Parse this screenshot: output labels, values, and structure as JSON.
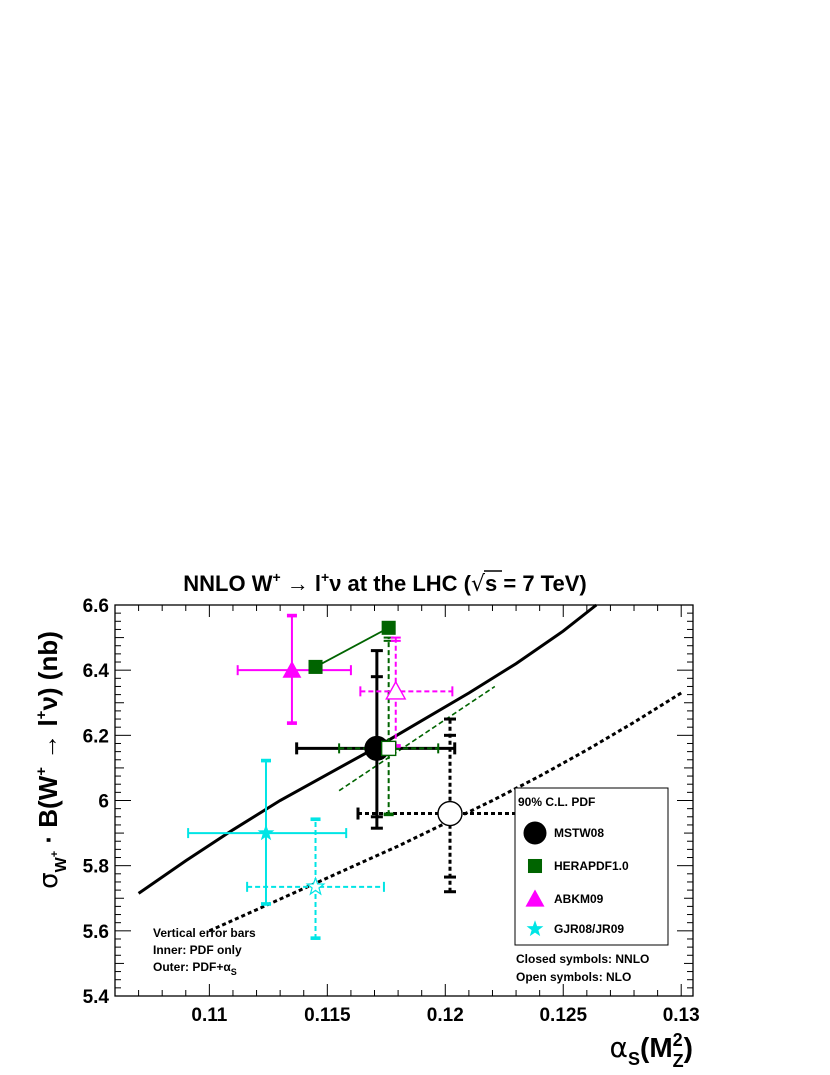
{
  "chart_data": {
    "type": "scatter",
    "title": {
      "prefix": "NNLO W",
      "sup1": "+",
      "arrow": " → l",
      "sup2": "+",
      "suffix": "ν at the LHC (",
      "sqrt_part": "s = 7 TeV)"
    },
    "xlabel": {
      "main": "α",
      "sub1": "S",
      "mid": "(M",
      "sup": "2",
      "sub2": "Z",
      "end": ")"
    },
    "ylabel": {
      "sigma": "σ",
      "sub": "W",
      "subsup": "+",
      "main": " · B(W",
      "sup1": "+",
      "arrow": " → l",
      "sup2": "+",
      "tail": "ν)  (nb)"
    },
    "xlim": [
      0.106,
      0.1305
    ],
    "ylim": [
      5.4,
      6.6
    ],
    "x_ticks": [
      {
        "v": 0.11,
        "label": "0.11"
      },
      {
        "v": 0.115,
        "label": "0.115"
      },
      {
        "v": 0.12,
        "label": "0.12"
      },
      {
        "v": 0.125,
        "label": "0.125"
      },
      {
        "v": 0.13,
        "label": "0.13"
      }
    ],
    "y_ticks": [
      {
        "v": 5.4,
        "label": "5.4"
      },
      {
        "v": 5.6,
        "label": "5.6"
      },
      {
        "v": 5.8,
        "label": "5.8"
      },
      {
        "v": 6.0,
        "label": "6"
      },
      {
        "v": 6.2,
        "label": "6.2"
      },
      {
        "v": 6.4,
        "label": "6.4"
      },
      {
        "v": 6.6,
        "label": "6.6"
      }
    ],
    "colors": {
      "MSTW08": "#000000",
      "HERAPDF1.0": "#006400",
      "ABKM09": "#ff00ff",
      "GJR08/JR09": "#00e5e5"
    },
    "curves": [
      {
        "name": "MSTW08 NNLO alpha_S dependence",
        "style": "solid",
        "color": "#000000",
        "x": [
          0.107,
          0.109,
          0.111,
          0.113,
          0.115,
          0.117,
          0.119,
          0.121,
          0.123,
          0.125,
          0.1264
        ],
        "y": [
          5.715,
          5.815,
          5.91,
          6.0,
          6.08,
          6.16,
          6.245,
          6.33,
          6.42,
          6.52,
          6.6
        ]
      },
      {
        "name": "MSTW08 NLO alpha_S dependence",
        "style": "dotted",
        "color": "#000000",
        "x": [
          0.11,
          0.112,
          0.114,
          0.116,
          0.118,
          0.12,
          0.122,
          0.124,
          0.126,
          0.128,
          0.13
        ],
        "y": [
          5.6,
          5.665,
          5.73,
          5.795,
          5.86,
          5.93,
          6.0,
          6.075,
          6.155,
          6.24,
          6.33
        ]
      },
      {
        "name": "HERAPDF1.0 NNLO",
        "style": "solid",
        "color": "#006400",
        "x": [
          0.1145,
          0.1176
        ],
        "y": [
          6.41,
          6.53
        ]
      },
      {
        "name": "HERAPDF1.0 NLO",
        "style": "dashed",
        "color": "#006400",
        "x": [
          0.1155,
          0.1221
        ],
        "y": [
          6.03,
          6.35
        ]
      }
    ],
    "points": [
      {
        "set": "MSTW08",
        "order": "NNLO",
        "closed": true,
        "marker": "circle",
        "color": "#000000",
        "x": 0.1171,
        "y": 6.16,
        "x_err": [
          0.1137,
          0.1204
        ],
        "y_inner": [
          5.95,
          6.38
        ],
        "y_outer": [
          5.915,
          6.46
        ],
        "dashed": false
      },
      {
        "set": "MSTW08",
        "order": "NLO",
        "closed": false,
        "marker": "circle",
        "color": "#000000",
        "x": 0.1202,
        "y": 5.96,
        "x_err": [
          0.1163,
          0.1242
        ],
        "y_inner": [
          5.765,
          6.2
        ],
        "y_outer": [
          5.72,
          6.25
        ],
        "dashed": true
      },
      {
        "set": "HERAPDF1.0",
        "order": "NNLO",
        "closed": true,
        "marker": "square",
        "color": "#006400",
        "x": 0.1176,
        "y": 6.53,
        "x_err": null,
        "y_inner": null,
        "y_outer": null,
        "dashed": false
      },
      {
        "set": "HERAPDF1.0",
        "order": "NNLO",
        "closed": true,
        "marker": "square",
        "color": "#006400",
        "x": 0.1145,
        "y": 6.41,
        "x_err": null,
        "y_inner": null,
        "y_outer": null,
        "dashed": false
      },
      {
        "set": "HERAPDF1.0",
        "order": "NLO",
        "closed": false,
        "marker": "square",
        "color": "#006400",
        "x": 0.1176,
        "y": 6.16,
        "x_err": [
          0.1155,
          0.1197
        ],
        "y_inner": [
          5.96,
          6.49
        ],
        "y_outer": [
          5.955,
          6.5
        ],
        "dashed": true
      },
      {
        "set": "ABKM09",
        "order": "NNLO",
        "closed": true,
        "marker": "triangle",
        "color": "#ff00ff",
        "x": 0.1135,
        "y": 6.4,
        "x_err": [
          0.1112,
          0.116
        ],
        "y_inner": [
          6.24,
          6.565
        ],
        "y_outer": [
          6.235,
          6.57
        ],
        "dashed": false
      },
      {
        "set": "ABKM09",
        "order": "NLO",
        "closed": false,
        "marker": "triangle",
        "color": "#ff00ff",
        "x": 0.1179,
        "y": 6.335,
        "x_err": [
          0.1164,
          0.1203
        ],
        "y_inner": [
          6.17,
          6.49
        ],
        "y_outer": [
          6.165,
          6.5
        ],
        "dashed": true
      },
      {
        "set": "GJR08/JR09",
        "order": "NNLO",
        "closed": true,
        "marker": "star",
        "color": "#00e5e5",
        "x": 0.1124,
        "y": 5.9,
        "x_err": [
          0.1091,
          0.1158
        ],
        "y_inner": [
          5.685,
          6.12
        ],
        "y_outer": [
          5.68,
          6.125
        ],
        "dashed": false
      },
      {
        "set": "GJR08/JR09",
        "order": "NLO",
        "closed": false,
        "marker": "star",
        "color": "#00e5e5",
        "x": 0.1145,
        "y": 5.735,
        "x_err": [
          0.1116,
          0.1174
        ],
        "y_inner": [
          5.58,
          5.94
        ],
        "y_outer": [
          5.575,
          5.945
        ],
        "dashed": true
      }
    ],
    "legend": {
      "placement": "bottom-right",
      "header": "90% C.L. PDF",
      "entries": [
        {
          "label": "MSTW08",
          "marker": "circle",
          "color": "#000000"
        },
        {
          "label": "HERAPDF1.0",
          "marker": "square",
          "color": "#006400"
        },
        {
          "label": "ABKM09",
          "marker": "triangle",
          "color": "#ff00ff"
        },
        {
          "label": "GJR08/JR09",
          "marker": "star",
          "color": "#00e5e5"
        }
      ]
    },
    "notes_left": {
      "line1": "Vertical error bars",
      "line2": "Inner: PDF only",
      "line3_main": "Outer: PDF+α",
      "line3_sub": "S"
    },
    "notes_right": {
      "line1": "Closed symbols: NNLO",
      "line2": "Open symbols: NLO"
    },
    "grid": false
  }
}
